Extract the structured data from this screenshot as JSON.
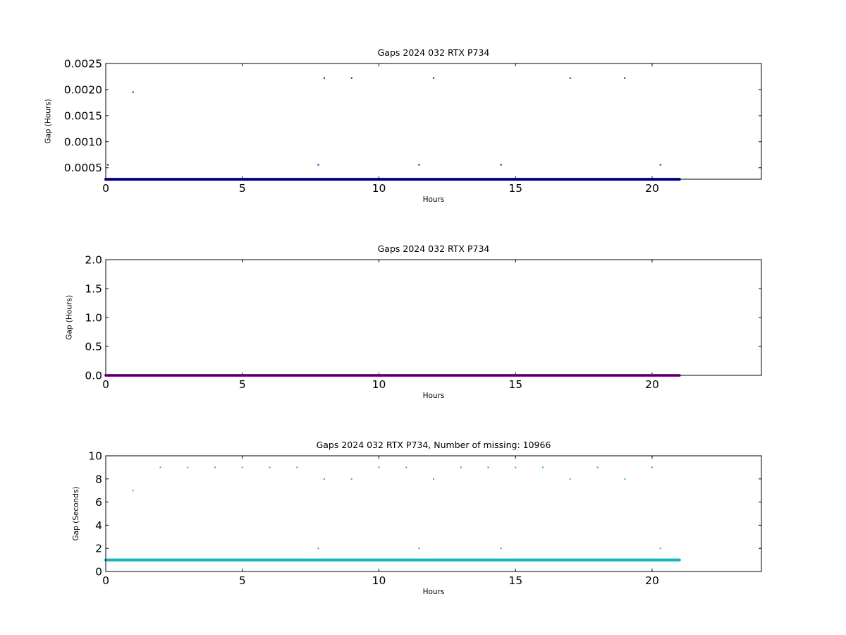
{
  "chart_data": [
    {
      "type": "scatter",
      "title": "Gaps 2024 032 RTX  P734",
      "xlabel": "Hours",
      "ylabel": "Gap (Hours)",
      "xlim": [
        0,
        24
      ],
      "ylim": [
        0.00028,
        0.0025
      ],
      "xticks": [
        "0",
        "5",
        "10",
        "15",
        "20"
      ],
      "yticks": [
        "0.0005",
        "0.0010",
        "0.0015",
        "0.0020",
        "0.0025"
      ],
      "grid": false,
      "color": "#0000bf",
      "baseline": {
        "y": 0.000278,
        "x_start": 0,
        "x_end": 21.0
      },
      "points": [
        {
          "x": 0.08,
          "y": 0.000556
        },
        {
          "x": 1.0,
          "y": 0.00195
        },
        {
          "x": 7.78,
          "y": 0.000556
        },
        {
          "x": 8.0,
          "y": 0.00222
        },
        {
          "x": 9.0,
          "y": 0.00222
        },
        {
          "x": 11.47,
          "y": 0.000556
        },
        {
          "x": 12.0,
          "y": 0.00222
        },
        {
          "x": 14.47,
          "y": 0.000556
        },
        {
          "x": 17.0,
          "y": 0.00222
        },
        {
          "x": 19.0,
          "y": 0.00222
        },
        {
          "x": 20.3,
          "y": 0.000556
        }
      ]
    },
    {
      "type": "scatter",
      "title": "Gaps 2024 032 RTX  P734",
      "xlabel": "Hours",
      "ylabel": "Gap (Hours)",
      "xlim": [
        0,
        24
      ],
      "ylim": [
        0,
        2.0
      ],
      "xticks": [
        "0",
        "5",
        "10",
        "15",
        "20"
      ],
      "yticks": [
        "0.0",
        "0.5",
        "1.0",
        "1.5",
        "2.0"
      ],
      "grid": false,
      "color": "#9b0fa8",
      "baseline": {
        "y": 0.0,
        "x_start": 0,
        "x_end": 21.0
      },
      "points": []
    },
    {
      "type": "scatter",
      "title": "Gaps 2024 032 RTX  P734, Number of missing: 10966",
      "xlabel": "Hours",
      "ylabel": "Gap (Seconds)",
      "xlim": [
        0,
        24
      ],
      "ylim": [
        0,
        10
      ],
      "xticks": [
        "0",
        "5",
        "10",
        "15",
        "20"
      ],
      "yticks": [
        "0",
        "2",
        "4",
        "6",
        "8",
        "10"
      ],
      "grid": false,
      "color": "#17b5b5",
      "baseline": {
        "y": 1,
        "x_start": 0,
        "x_end": 21.0
      },
      "points": [
        {
          "x": 1,
          "y": 7
        },
        {
          "x": 2,
          "y": 9
        },
        {
          "x": 3,
          "y": 9
        },
        {
          "x": 4,
          "y": 9
        },
        {
          "x": 5,
          "y": 9
        },
        {
          "x": 6,
          "y": 9
        },
        {
          "x": 7,
          "y": 9
        },
        {
          "x": 7.78,
          "y": 2
        },
        {
          "x": 8,
          "y": 8
        },
        {
          "x": 9,
          "y": 8
        },
        {
          "x": 10,
          "y": 9
        },
        {
          "x": 11,
          "y": 9
        },
        {
          "x": 11.47,
          "y": 2
        },
        {
          "x": 12,
          "y": 8
        },
        {
          "x": 13,
          "y": 9
        },
        {
          "x": 14,
          "y": 9
        },
        {
          "x": 14.47,
          "y": 2
        },
        {
          "x": 15,
          "y": 9
        },
        {
          "x": 16,
          "y": 9
        },
        {
          "x": 17,
          "y": 8
        },
        {
          "x": 18,
          "y": 9
        },
        {
          "x": 19,
          "y": 8
        },
        {
          "x": 20,
          "y": 9
        },
        {
          "x": 20.3,
          "y": 2
        }
      ]
    }
  ]
}
